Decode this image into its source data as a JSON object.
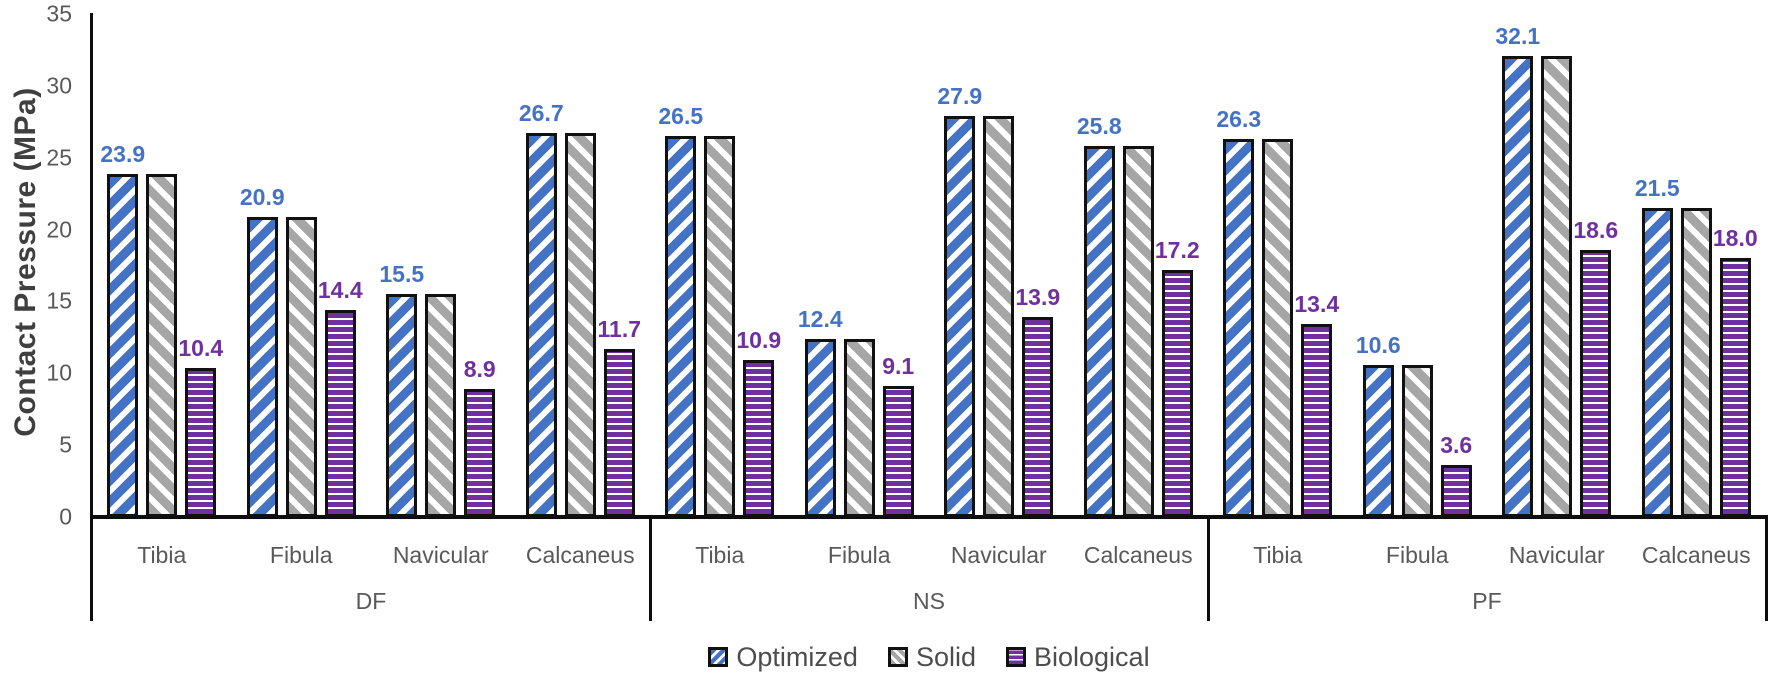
{
  "chart_data": {
    "type": "bar",
    "title": "",
    "ylabel": "Contact Pressure (MPa)",
    "xlabel": "",
    "ylim": [
      0,
      35
    ],
    "yticks": [
      0,
      5,
      10,
      15,
      20,
      25,
      30,
      35
    ],
    "grid": false,
    "group_labels": [
      "DF",
      "NS",
      "PF"
    ],
    "categories": [
      "Tibia",
      "Fibula",
      "Navicular",
      "Calcaneus"
    ],
    "series": [
      {
        "name": "Optimized",
        "pattern": "diagonal-up",
        "color": "#4472C4",
        "label_color": "#4472C4",
        "show_labels": true,
        "values": {
          "DF": [
            23.9,
            20.9,
            15.5,
            26.7
          ],
          "NS": [
            26.5,
            12.4,
            27.9,
            25.8
          ],
          "PF": [
            26.3,
            10.6,
            32.1,
            21.5
          ]
        }
      },
      {
        "name": "Solid",
        "pattern": "diagonal-down",
        "color": "#A6A6A6",
        "label_color": "#A6A6A6",
        "show_labels": false,
        "values": {
          "DF": [
            23.9,
            20.9,
            15.5,
            26.7
          ],
          "NS": [
            26.5,
            12.4,
            27.9,
            25.8
          ],
          "PF": [
            26.3,
            10.6,
            32.1,
            21.5
          ]
        }
      },
      {
        "name": "Biological",
        "pattern": "horizontal",
        "color": "#7030A0",
        "label_color": "#7030A0",
        "show_labels": true,
        "values": {
          "DF": [
            10.4,
            14.4,
            8.9,
            11.7
          ],
          "NS": [
            10.9,
            9.1,
            13.9,
            17.2
          ],
          "PF": [
            13.4,
            3.6,
            18.6,
            18.0
          ]
        }
      }
    ],
    "legend": {
      "position": "bottom",
      "items": [
        "Optimized",
        "Solid",
        "Biological"
      ]
    }
  }
}
